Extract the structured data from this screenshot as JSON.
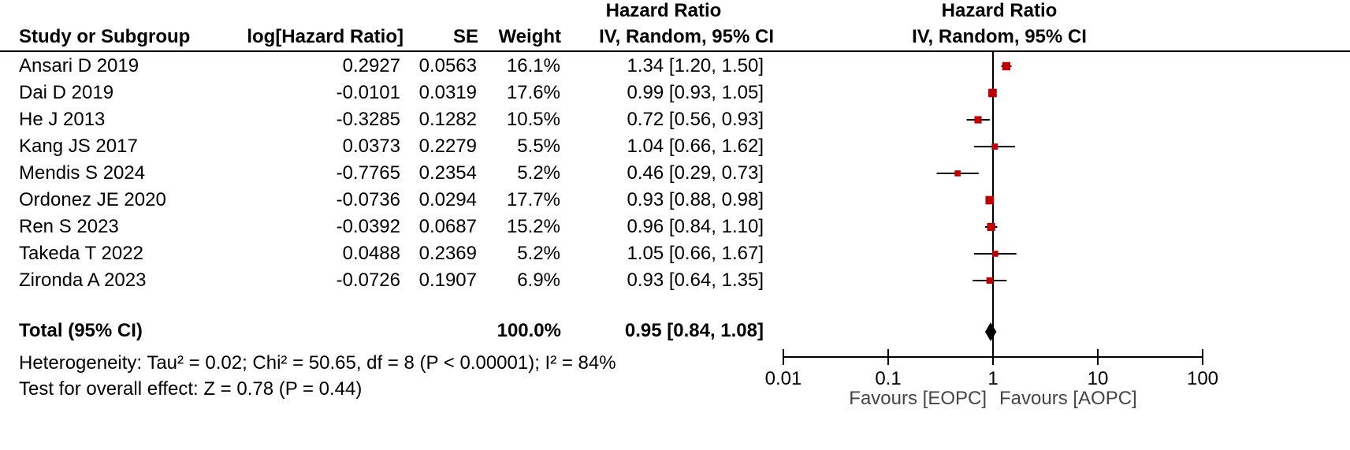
{
  "header": {
    "effect_top": "Hazard Ratio",
    "effect_bottom": "IV, Random, 95% CI",
    "plot_top": "Hazard Ratio",
    "plot_bottom": "IV, Random, 95% CI",
    "study": "Study or Subgroup",
    "loghr": "log[Hazard Ratio]",
    "se": "SE",
    "weight": "Weight"
  },
  "chart_data": {
    "type": "forest",
    "scale": "log",
    "xlim": [
      0.01,
      100
    ],
    "ticks": [
      0.01,
      0.1,
      1,
      10,
      100
    ],
    "tick_labels": [
      "0.01",
      "0.1",
      "1",
      "10",
      "100"
    ],
    "colors": {
      "marker": "#c00000",
      "line": "#000000"
    },
    "studies": [
      {
        "name": "Ansari D 2019",
        "loghr": "0.2927",
        "se": "0.0563",
        "weight_label": "16.1%",
        "ci_label": "1.34 [1.20, 1.50]",
        "weight": 16.1,
        "hr": 1.34,
        "lo": 1.2,
        "hi": 1.5
      },
      {
        "name": "Dai D 2019",
        "loghr": "-0.0101",
        "se": "0.0319",
        "weight_label": "17.6%",
        "ci_label": "0.99 [0.93, 1.05]",
        "weight": 17.6,
        "hr": 0.99,
        "lo": 0.93,
        "hi": 1.05
      },
      {
        "name": "He J 2013",
        "loghr": "-0.3285",
        "se": "0.1282",
        "weight_label": "10.5%",
        "ci_label": "0.72 [0.56, 0.93]",
        "weight": 10.5,
        "hr": 0.72,
        "lo": 0.56,
        "hi": 0.93
      },
      {
        "name": "Kang JS 2017",
        "loghr": "0.0373",
        "se": "0.2279",
        "weight_label": "5.5%",
        "ci_label": "1.04 [0.66, 1.62]",
        "weight": 5.5,
        "hr": 1.04,
        "lo": 0.66,
        "hi": 1.62
      },
      {
        "name": "Mendis S 2024",
        "loghr": "-0.7765",
        "se": "0.2354",
        "weight_label": "5.2%",
        "ci_label": "0.46 [0.29, 0.73]",
        "weight": 5.2,
        "hr": 0.46,
        "lo": 0.29,
        "hi": 0.73
      },
      {
        "name": "Ordonez JE 2020",
        "loghr": "-0.0736",
        "se": "0.0294",
        "weight_label": "17.7%",
        "ci_label": "0.93 [0.88, 0.98]",
        "weight": 17.7,
        "hr": 0.93,
        "lo": 0.88,
        "hi": 0.98
      },
      {
        "name": "Ren S 2023",
        "loghr": "-0.0392",
        "se": "0.0687",
        "weight_label": "15.2%",
        "ci_label": "0.96 [0.84, 1.10]",
        "weight": 15.2,
        "hr": 0.96,
        "lo": 0.84,
        "hi": 1.1
      },
      {
        "name": "Takeda T 2022",
        "loghr": "0.0488",
        "se": "0.2369",
        "weight_label": "5.2%",
        "ci_label": "1.05 [0.66, 1.67]",
        "weight": 5.2,
        "hr": 1.05,
        "lo": 0.66,
        "hi": 1.67
      },
      {
        "name": "Zironda A 2023",
        "loghr": "-0.0726",
        "se": "0.1907",
        "weight_label": "6.9%",
        "ci_label": "0.93 [0.64, 1.35]",
        "weight": 6.9,
        "hr": 0.93,
        "lo": 0.64,
        "hi": 1.35
      }
    ],
    "total": {
      "label": "Total (95% CI)",
      "weight_label": "100.0%",
      "ci_label": "0.95 [0.84, 1.08]",
      "hr": 0.95,
      "lo": 0.84,
      "hi": 1.08
    },
    "heterogeneity": "Heterogeneity: Tau² = 0.02; Chi² = 50.65, df = 8 (P < 0.00001); I² = 84%",
    "overall_effect": "Test for overall effect: Z = 0.78 (P = 0.44)",
    "favours_left": "Favours [EOPC]",
    "favours_right": "Favours [AOPC]"
  }
}
